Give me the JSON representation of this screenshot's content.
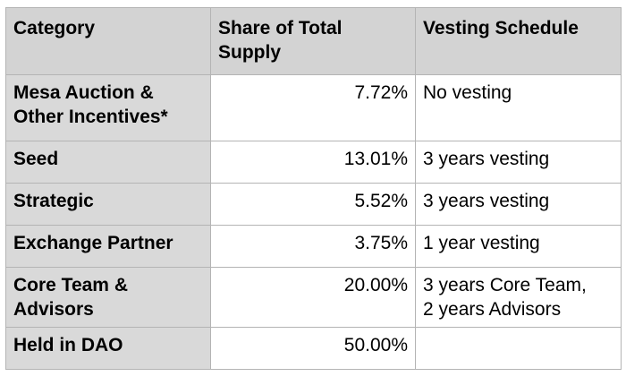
{
  "table": {
    "headers": {
      "category": "Category",
      "share": [
        "Share of Total",
        "Supply"
      ],
      "vesting": "Vesting Schedule"
    },
    "rows": [
      {
        "category": [
          "Mesa Auction &",
          "Other Incentives*"
        ],
        "share": "7.72%",
        "vesting": [
          "No vesting"
        ]
      },
      {
        "category": [
          "Seed"
        ],
        "share": "13.01%",
        "vesting": [
          "3 years vesting"
        ]
      },
      {
        "category": [
          "Strategic"
        ],
        "share": "5.52%",
        "vesting": [
          "3 years vesting"
        ]
      },
      {
        "category": [
          "Exchange Partner"
        ],
        "share": "3.75%",
        "vesting": [
          "1 year vesting"
        ]
      },
      {
        "category": [
          "Core Team &",
          "Advisors"
        ],
        "share": "20.00%",
        "vesting": [
          "3 years Core Team,",
          "2 years Advisors"
        ]
      },
      {
        "category": [
          "Held in DAO"
        ],
        "share": "50.00%",
        "vesting": []
      }
    ]
  },
  "colors": {
    "header_bg": "#d3d3d3",
    "row_header_bg": "#d9d9d9",
    "cell_bg": "#ffffff",
    "border": "#b4b4b4"
  }
}
